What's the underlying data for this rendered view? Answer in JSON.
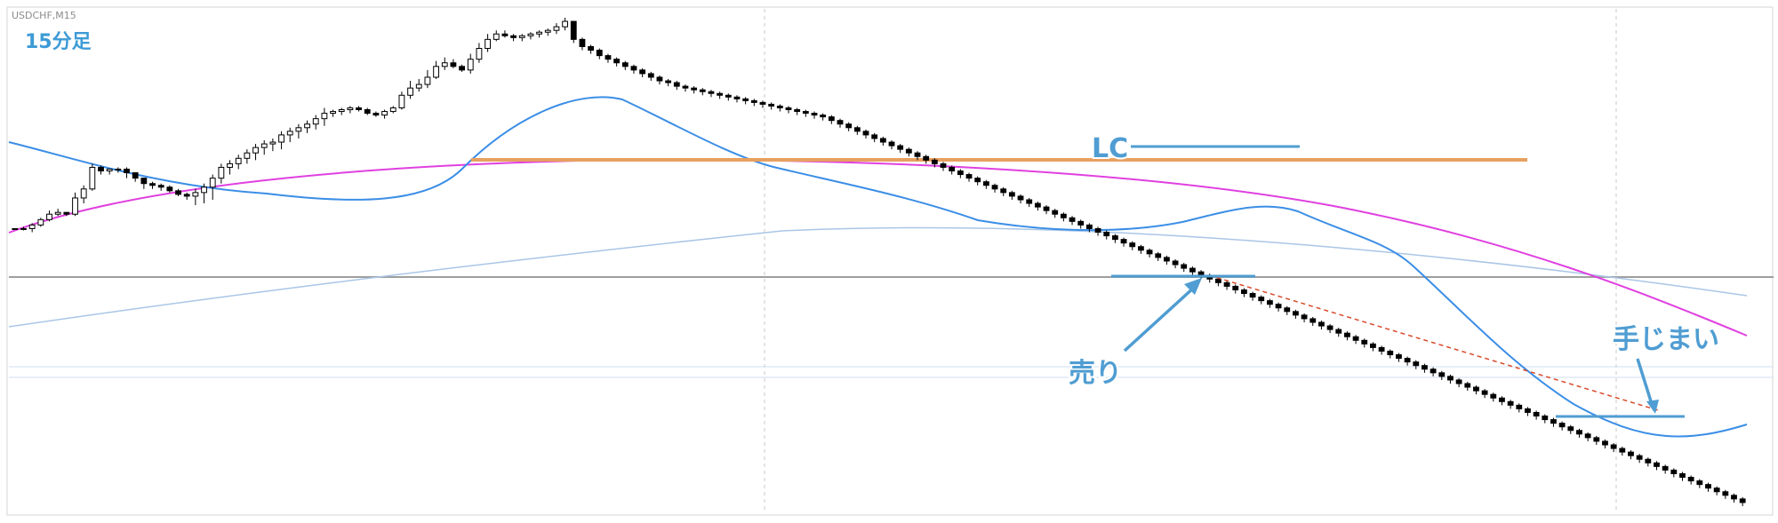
{
  "chart_data": {
    "type": "candlestick",
    "symbol_label": "USDCHF,M15",
    "timeframe_label": "15分足",
    "annotations": {
      "lc": "LC",
      "sell": "売り",
      "exit": "手じまい"
    },
    "colors": {
      "bull_body": "#ffffff",
      "bear_body": "#000000",
      "ma_fast": "#3b8ee6",
      "ma_mid": "#e040e0",
      "ma_slow": "#aac6e6",
      "resistance": "#e8a060",
      "annotation": "#4f9dd2",
      "trendline": "#d94a2a"
    },
    "candles": [
      [
        208,
        208,
        208,
        208
      ],
      [
        208,
        209,
        207,
        208
      ],
      [
        208,
        211,
        206,
        210
      ],
      [
        210,
        214,
        209,
        213
      ],
      [
        213,
        218,
        212,
        216
      ],
      [
        216,
        219,
        215,
        217
      ],
      [
        217,
        216,
        215,
        216
      ],
      [
        216,
        228,
        215,
        225
      ],
      [
        225,
        232,
        222,
        230
      ],
      [
        230,
        244,
        229,
        242
      ],
      [
        242,
        243,
        238,
        240
      ],
      [
        240,
        241,
        238,
        241
      ],
      [
        241,
        242,
        239,
        241
      ],
      [
        241,
        242,
        236,
        239
      ],
      [
        239,
        238,
        234,
        236
      ],
      [
        236,
        235,
        230,
        233
      ],
      [
        233,
        234,
        230,
        232
      ],
      [
        232,
        233,
        229,
        231
      ],
      [
        231,
        232,
        228,
        229
      ],
      [
        229,
        230,
        226,
        227
      ],
      [
        227,
        228,
        224,
        226
      ],
      [
        226,
        230,
        221,
        228
      ],
      [
        228,
        233,
        222,
        231
      ],
      [
        231,
        238,
        224,
        236
      ],
      [
        236,
        244,
        233,
        242
      ],
      [
        242,
        246,
        238,
        244
      ],
      [
        244,
        249,
        241,
        247
      ],
      [
        247,
        252,
        244,
        250
      ],
      [
        250,
        255,
        246,
        253
      ],
      [
        253,
        257,
        249,
        255
      ],
      [
        255,
        258,
        251,
        256
      ],
      [
        256,
        262,
        252,
        260
      ],
      [
        260,
        264,
        256,
        262
      ],
      [
        262,
        266,
        258,
        264
      ],
      [
        264,
        268,
        261,
        266
      ],
      [
        266,
        271,
        263,
        269
      ],
      [
        269,
        275,
        265,
        272
      ],
      [
        272,
        274,
        270,
        273
      ],
      [
        273,
        275,
        271,
        274
      ],
      [
        274,
        276,
        272,
        275
      ],
      [
        275,
        276,
        273,
        274
      ],
      [
        274,
        275,
        271,
        272
      ],
      [
        272,
        273,
        270,
        271
      ],
      [
        271,
        274,
        269,
        273
      ],
      [
        273,
        276,
        272,
        275
      ],
      [
        275,
        284,
        274,
        282
      ],
      [
        282,
        290,
        280,
        286
      ],
      [
        286,
        291,
        284,
        288
      ],
      [
        288,
        296,
        286,
        292
      ],
      [
        292,
        301,
        291,
        298
      ],
      [
        298,
        303,
        296,
        300
      ],
      [
        300,
        302,
        297,
        298
      ],
      [
        298,
        299,
        295,
        296
      ],
      [
        296,
        305,
        294,
        302
      ],
      [
        302,
        311,
        300,
        308
      ],
      [
        308,
        316,
        306,
        313
      ],
      [
        313,
        318,
        312,
        316
      ],
      [
        316,
        318,
        314,
        315
      ],
      [
        315,
        316,
        312,
        314
      ],
      [
        314,
        316,
        312,
        315
      ],
      [
        315,
        317,
        313,
        316
      ],
      [
        316,
        318,
        314,
        317
      ],
      [
        317,
        319,
        315,
        318
      ],
      [
        318,
        322,
        316,
        320
      ],
      [
        320,
        325,
        318,
        323
      ],
      [
        323,
        322,
        311,
        313
      ],
      [
        313,
        314,
        307,
        309
      ],
      [
        309,
        310,
        305,
        307
      ],
      [
        307,
        308,
        302,
        304
      ],
      [
        304,
        305,
        300,
        302
      ],
      [
        302,
        303,
        298,
        300
      ],
      [
        300,
        301,
        296,
        298
      ],
      [
        298,
        299,
        294,
        296
      ],
      [
        296,
        297,
        292,
        294
      ],
      [
        294,
        295,
        290,
        292
      ],
      [
        292,
        293,
        288,
        290
      ],
      [
        290,
        291,
        287,
        289
      ],
      [
        289,
        290,
        285,
        287
      ],
      [
        287,
        288,
        284,
        286
      ],
      [
        286,
        287,
        283,
        285
      ],
      [
        285,
        286,
        282,
        284
      ],
      [
        284,
        285,
        281,
        283
      ],
      [
        283,
        284,
        280,
        282
      ],
      [
        282,
        283,
        279,
        281
      ],
      [
        281,
        282,
        278,
        280
      ],
      [
        280,
        281,
        277,
        279
      ],
      [
        279,
        280,
        276,
        278
      ],
      [
        278,
        279,
        275,
        277
      ],
      [
        277,
        278,
        274,
        276
      ],
      [
        276,
        277,
        273,
        275
      ],
      [
        275,
        276,
        272,
        274
      ],
      [
        274,
        275,
        271,
        273
      ],
      [
        273,
        274,
        270,
        272
      ],
      [
        272,
        273,
        269,
        271
      ],
      [
        271,
        272,
        268,
        270
      ],
      [
        270,
        271,
        266,
        268
      ],
      [
        268,
        269,
        264,
        266
      ],
      [
        266,
        267,
        262,
        264
      ],
      [
        264,
        265,
        260,
        262
      ],
      [
        262,
        263,
        258,
        260
      ],
      [
        260,
        261,
        256,
        258
      ],
      [
        258,
        259,
        254,
        256
      ],
      [
        256,
        257,
        252,
        254
      ],
      [
        254,
        255,
        250,
        252
      ],
      [
        252,
        253,
        248,
        250
      ],
      [
        250,
        251,
        246,
        248
      ],
      [
        248,
        249,
        244,
        246
      ],
      [
        246,
        247,
        242,
        244
      ],
      [
        244,
        245,
        240,
        242
      ],
      [
        242,
        243,
        238,
        240
      ],
      [
        240,
        241,
        236,
        238
      ],
      [
        238,
        239,
        234,
        236
      ],
      [
        236,
        237,
        232,
        234
      ],
      [
        234,
        235,
        230,
        232
      ],
      [
        232,
        233,
        228,
        230
      ],
      [
        230,
        231,
        226,
        228
      ],
      [
        228,
        229,
        224,
        226
      ],
      [
        226,
        227,
        222,
        224
      ],
      [
        224,
        225,
        220,
        222
      ],
      [
        222,
        223,
        218,
        220
      ],
      [
        220,
        221,
        216,
        218
      ],
      [
        218,
        219,
        214,
        216
      ],
      [
        216,
        217,
        212,
        214
      ],
      [
        214,
        215,
        210,
        212
      ],
      [
        212,
        213,
        208,
        210
      ],
      [
        210,
        211,
        206,
        208
      ],
      [
        208,
        209,
        204,
        206
      ],
      [
        206,
        207,
        202,
        204
      ],
      [
        204,
        205,
        200,
        202
      ],
      [
        202,
        203,
        198,
        200
      ],
      [
        200,
        201,
        196,
        198
      ],
      [
        198,
        199,
        194,
        196
      ],
      [
        196,
        197,
        192,
        194
      ],
      [
        194,
        195,
        190,
        192
      ],
      [
        192,
        193,
        188,
        190
      ],
      [
        190,
        191,
        186,
        188
      ],
      [
        188,
        189,
        184,
        186
      ],
      [
        186,
        187,
        182,
        184
      ],
      [
        184,
        185,
        180,
        182
      ],
      [
        182,
        183,
        178,
        180
      ],
      [
        180,
        181,
        176,
        178
      ],
      [
        178,
        179,
        174,
        176
      ],
      [
        176,
        177,
        172,
        174
      ],
      [
        174,
        175,
        170,
        172
      ],
      [
        172,
        173,
        168,
        170
      ],
      [
        170,
        171,
        166,
        168
      ],
      [
        168,
        169,
        164,
        166
      ],
      [
        166,
        167,
        162,
        164
      ],
      [
        164,
        165,
        160,
        162
      ],
      [
        162,
        163,
        158,
        160
      ],
      [
        160,
        161,
        156,
        158
      ],
      [
        158,
        159,
        154,
        156
      ],
      [
        156,
        157,
        152,
        154
      ],
      [
        154,
        155,
        150,
        152
      ],
      [
        152,
        153,
        148,
        150
      ],
      [
        150,
        151,
        146,
        148
      ],
      [
        148,
        149,
        144,
        146
      ],
      [
        146,
        147,
        142,
        144
      ],
      [
        144,
        145,
        140,
        142
      ],
      [
        142,
        143,
        138,
        140
      ],
      [
        140,
        141,
        136,
        138
      ],
      [
        138,
        139,
        134,
        136
      ],
      [
        136,
        137,
        132,
        134
      ],
      [
        134,
        135,
        130,
        132
      ],
      [
        132,
        133,
        128,
        130
      ],
      [
        130,
        131,
        126,
        128
      ],
      [
        128,
        129,
        124,
        126
      ],
      [
        126,
        127,
        122,
        124
      ],
      [
        124,
        125,
        120,
        122
      ],
      [
        122,
        123,
        118,
        120
      ],
      [
        120,
        121,
        116,
        118
      ],
      [
        118,
        119,
        114,
        116
      ],
      [
        116,
        117,
        112,
        114
      ],
      [
        114,
        115,
        110,
        112
      ],
      [
        112,
        113,
        108,
        110
      ],
      [
        110,
        111,
        106,
        108
      ],
      [
        108,
        109,
        104,
        106
      ],
      [
        106,
        107,
        102,
        104
      ],
      [
        104,
        105,
        100,
        102
      ],
      [
        102,
        103,
        98,
        100
      ],
      [
        100,
        101,
        96,
        98
      ],
      [
        98,
        99,
        94,
        96
      ],
      [
        96,
        97,
        92,
        94
      ],
      [
        94,
        95,
        90,
        92
      ],
      [
        92,
        93,
        88,
        90
      ],
      [
        90,
        91,
        86,
        88
      ],
      [
        88,
        89,
        84,
        86
      ],
      [
        86,
        87,
        82,
        84
      ],
      [
        84,
        85,
        80,
        82
      ],
      [
        82,
        83,
        78,
        80
      ],
      [
        80,
        81,
        76,
        78
      ],
      [
        78,
        79,
        74,
        76
      ],
      [
        76,
        77,
        72,
        74
      ],
      [
        74,
        75,
        70,
        72
      ],
      [
        72,
        73,
        68,
        70
      ],
      [
        70,
        71,
        66,
        68
      ],
      [
        68,
        69,
        64,
        66
      ],
      [
        66,
        67,
        62,
        64
      ],
      [
        64,
        65,
        60,
        62
      ],
      [
        62,
        63,
        58,
        60
      ],
      [
        60,
        61,
        56,
        58
      ],
      [
        58,
        59,
        54,
        56
      ]
    ]
  }
}
